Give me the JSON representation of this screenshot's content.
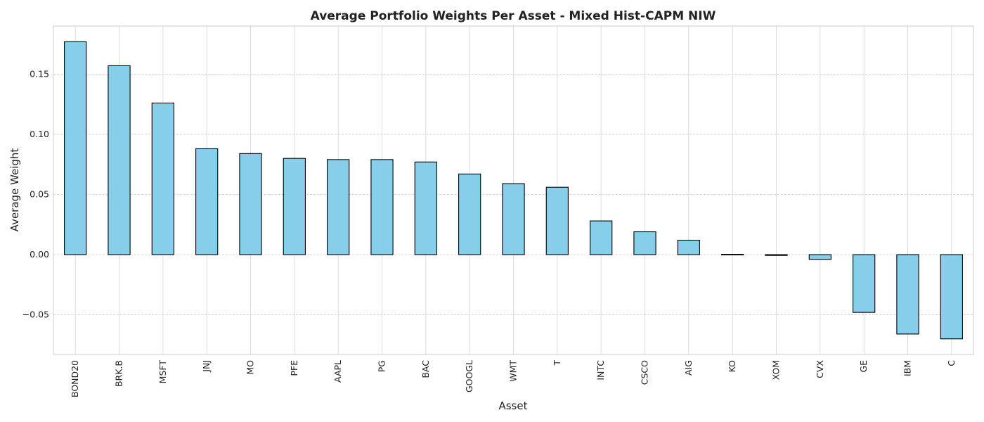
{
  "chart_data": {
    "type": "bar",
    "title": "Average Portfolio Weights Per Asset - Mixed Hist-CAPM NIW",
    "xlabel": "Asset",
    "ylabel": "Average Weight",
    "categories": [
      "BOND20",
      "BRK.B",
      "MSFT",
      "JNJ",
      "MO",
      "PFE",
      "AAPL",
      "PG",
      "BAC",
      "GOOGL",
      "WMT",
      "T",
      "INTC",
      "CSCO",
      "AIG",
      "KO",
      "XOM",
      "CVX",
      "GE",
      "IBM",
      "C"
    ],
    "values": [
      0.177,
      0.157,
      0.126,
      0.088,
      0.084,
      0.08,
      0.079,
      0.079,
      0.077,
      0.067,
      0.059,
      0.056,
      0.028,
      0.019,
      0.012,
      0.0003,
      -0.0007,
      -0.004,
      -0.048,
      -0.066,
      -0.07
    ],
    "ylim": [
      -0.083,
      0.19
    ],
    "yticks": [
      -0.05,
      0.0,
      0.05,
      0.1,
      0.15
    ],
    "ytick_labels": [
      "−0.05",
      "0.00",
      "0.05",
      "0.10",
      "0.15"
    ],
    "grid": true,
    "bar_color": "#87ceeb",
    "edge_color": "#000000"
  }
}
